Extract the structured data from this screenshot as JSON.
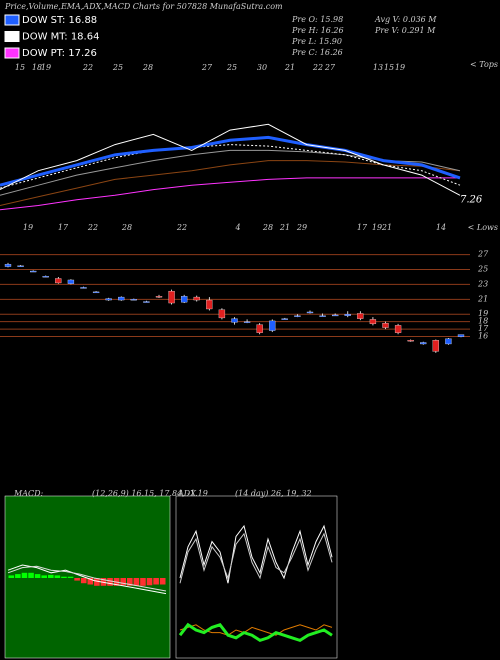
{
  "header": {
    "title": "Price,Volume,EMA,ADX,MACD Charts for 507828 MunafaSutra.com"
  },
  "legend": [
    {
      "label": "DOW ST: 16.88",
      "color": "#1f5fff"
    },
    {
      "label": "DOW MT: 18.64",
      "color": "#ffffff"
    },
    {
      "label": "DOW PT: 17.26",
      "color": "#ff33ff"
    }
  ],
  "info": [
    "Pre  O: 15.98",
    "Pre  H: 16.26",
    "Pre  L: 15.90",
    "Pre  C: 16.26",
    "Avg V: 0.036  M",
    "Pre  V: 0.291 M"
  ],
  "chart_data": [
    {
      "type": "line",
      "top_note": "< Tops",
      "bottom_note": "< Lows",
      "annotation": "7.26",
      "top_labels": [
        "15",
        "18",
        "19",
        "22",
        "25",
        "28",
        "27",
        "25",
        "30",
        "21",
        "22",
        "27",
        "13",
        "15",
        "19"
      ],
      "bottom_labels": [
        "19",
        "17",
        "22",
        "28",
        "22",
        "4",
        "28",
        "21",
        "29",
        "17",
        "19",
        "21",
        "14"
      ],
      "ylim": [
        0,
        100
      ],
      "series": [
        {
          "color": "#8b4513",
          "values": [
            10,
            16,
            22,
            28,
            31,
            34,
            38,
            41,
            41,
            40,
            38,
            37,
            34
          ]
        },
        {
          "color": "#ff33ff",
          "values": [
            7,
            10,
            14,
            17,
            21,
            24,
            26,
            28,
            29,
            29,
            29,
            29,
            29
          ]
        },
        {
          "color": "#999999",
          "values": [
            17,
            24,
            31,
            36,
            41,
            45,
            48,
            48,
            47,
            45,
            41,
            40,
            34
          ]
        },
        {
          "color": "#ffffff",
          "dashed": true,
          "values": [
            22,
            29,
            36,
            43,
            48,
            50,
            52,
            51,
            48,
            45,
            38,
            34,
            24
          ]
        },
        {
          "color": "#1f5fff",
          "width": 3,
          "values": [
            24,
            31,
            38,
            45,
            48,
            50,
            55,
            57,
            52,
            48,
            41,
            38,
            29
          ]
        },
        {
          "color": "#ffffff",
          "values": [
            21,
            34,
            41,
            52,
            59,
            48,
            62,
            66,
            52,
            48,
            38,
            31,
            17
          ]
        }
      ]
    },
    {
      "type": "candlestick",
      "ylim": [
        11.5,
        28.3
      ],
      "yticks": [
        27,
        25,
        23,
        21,
        19,
        18,
        17,
        16
      ],
      "up_color": "#1f5fff",
      "down_color": "#e02020",
      "open": [
        25.4,
        25.5,
        24.8,
        24.1,
        23.8,
        23.1,
        22.6,
        22.0,
        20.9,
        20.9,
        21.0,
        20.7,
        21.4,
        22.1,
        20.6,
        21.3,
        20.9,
        19.6,
        17.9,
        18.0,
        17.6,
        16.8,
        18.4,
        18.8,
        19.3,
        18.8,
        18.9,
        18.8,
        19.1,
        18.3,
        17.8,
        17.5,
        15.5,
        15.0,
        15.5,
        15.0,
        15.98
      ],
      "high": [
        25.9,
        25.6,
        24.9,
        24.2,
        24.0,
        23.7,
        22.7,
        22.1,
        21.2,
        21.4,
        21.1,
        20.8,
        21.6,
        22.3,
        21.6,
        21.5,
        21.3,
        19.8,
        18.6,
        18.3,
        17.8,
        18.3,
        18.5,
        19.0,
        19.5,
        19.1,
        19.1,
        19.4,
        19.4,
        18.6,
        18.0,
        17.7,
        15.6,
        15.3,
        15.6,
        15.8,
        16.26
      ],
      "low": [
        25.3,
        25.4,
        24.7,
        24.0,
        23.1,
        23.0,
        22.5,
        21.9,
        20.8,
        20.8,
        20.9,
        20.6,
        21.2,
        20.3,
        20.5,
        20.7,
        19.5,
        18.3,
        17.6,
        17.8,
        16.3,
        16.6,
        18.3,
        18.6,
        19.1,
        18.7,
        18.8,
        18.6,
        18.2,
        17.5,
        17.0,
        16.3,
        15.3,
        14.9,
        13.8,
        14.9,
        15.9
      ],
      "close": [
        25.7,
        25.5,
        24.8,
        24.1,
        23.2,
        23.6,
        22.6,
        22.0,
        21.1,
        21.3,
        21.0,
        20.7,
        21.3,
        20.5,
        21.4,
        20.9,
        19.7,
        18.5,
        18.4,
        18.0,
        16.5,
        18.1,
        18.4,
        18.8,
        19.3,
        18.8,
        18.9,
        19.0,
        18.4,
        17.7,
        17.2,
        16.5,
        15.4,
        15.2,
        14.0,
        15.7,
        16.26
      ]
    },
    {
      "type": "macd",
      "title": "MACD:",
      "subtitle": "(12,26,9) 16.15, 17.84, -1.19",
      "ylim": [
        -3,
        3
      ],
      "series": [
        {
          "color": "#ffffff",
          "values": [
            0.3,
            0.5,
            0.4,
            0.2,
            0.3,
            0.1,
            -0.1,
            -0.2,
            -0.3,
            -0.4,
            -0.5,
            -0.6
          ]
        },
        {
          "color": "#dddddd",
          "values": [
            0.2,
            0.4,
            0.45,
            0.3,
            0.25,
            0.15,
            0.0,
            -0.1,
            -0.2,
            -0.3,
            -0.4,
            -0.5
          ]
        }
      ],
      "histogram": [
        0.1,
        0.15,
        0.2,
        0.2,
        0.15,
        0.1,
        0.12,
        0.1,
        0.05,
        0.05,
        -0.1,
        -0.2,
        -0.25,
        -0.3,
        -0.3,
        -0.3,
        -0.3,
        -0.28,
        -0.3,
        -0.3,
        -0.3,
        -0.28,
        -0.25,
        -0.25
      ]
    },
    {
      "type": "adx",
      "title": "ADX",
      "subtitle": "(14 day) 26, 19, 32",
      "ylim": [
        0,
        60
      ],
      "series": [
        {
          "color": "#ffffff",
          "values": [
            30,
            42,
            48,
            35,
            44,
            40,
            28,
            46,
            50,
            38,
            32,
            45,
            36,
            30,
            40,
            48,
            35,
            44,
            50,
            38
          ]
        },
        {
          "color": "#cccccc",
          "values": [
            28,
            40,
            45,
            33,
            42,
            38,
            30,
            43,
            47,
            36,
            30,
            42,
            34,
            32,
            38,
            45,
            33,
            41,
            47,
            36
          ]
        },
        {
          "color": "#e07b00",
          "values": [
            10,
            11,
            12,
            10,
            9,
            9,
            8,
            10,
            9,
            11,
            10,
            9,
            8,
            10,
            11,
            12,
            11,
            10,
            12,
            11
          ]
        },
        {
          "color": "#22ee22",
          "width": 3,
          "values": [
            8,
            12,
            10,
            9,
            11,
            12,
            8,
            7,
            9,
            8,
            6,
            7,
            9,
            8,
            7,
            6,
            8,
            9,
            10,
            8
          ]
        }
      ]
    }
  ]
}
